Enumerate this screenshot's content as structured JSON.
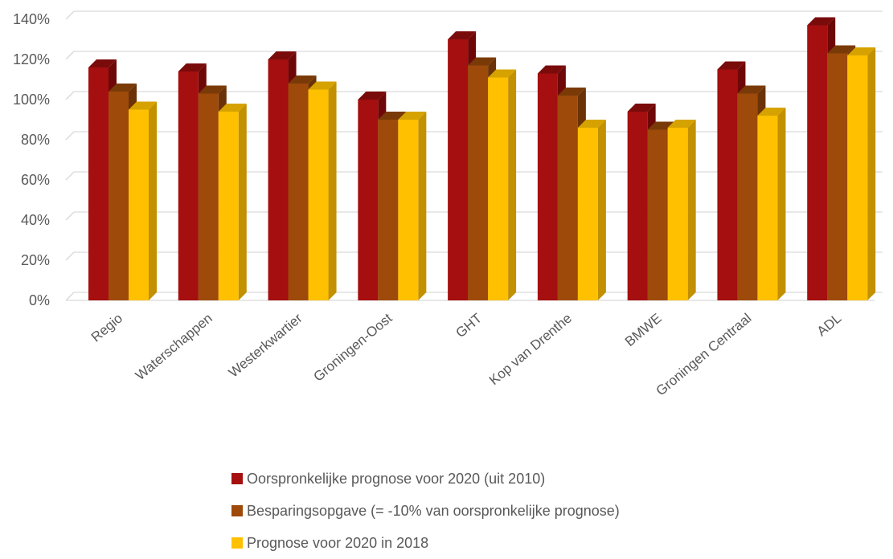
{
  "chart_data": {
    "type": "bar",
    "title": "",
    "xlabel": "",
    "ylabel": "",
    "ylim": [
      0,
      140
    ],
    "y_tick_labels": [
      "0%",
      "20%",
      "40%",
      "60%",
      "80%",
      "100%",
      "120%",
      "140%"
    ],
    "grid": true,
    "legend_position": "bottom",
    "categories": [
      "Regio",
      "Waterschappen",
      "Westerkwartier",
      "Groningen-Oost",
      "GHT",
      "Kop van Drenthe",
      "BMWE",
      "Groningen Centraal",
      "ADL"
    ],
    "series": [
      {
        "name": "Oorspronkelijke prognose voor 2020 (uit 2010)",
        "color": "#A50F0F",
        "side": "#6E0808",
        "top": "#7A0B0B",
        "values": [
          116,
          114,
          120,
          100,
          130,
          113,
          94,
          115,
          137
        ]
      },
      {
        "name": "Besparingsopgave (= -10% van oorspronkelijke prognose)",
        "color": "#9E4A0A",
        "side": "#6A3206",
        "top": "#7A3A08",
        "values": [
          104,
          103,
          108,
          90,
          117,
          102,
          85,
          103,
          123
        ]
      },
      {
        "name": "Prognose voor 2020 in 2018",
        "color": "#FFC000",
        "side": "#C29000",
        "top": "#D6A200",
        "values": [
          95,
          94,
          105,
          90,
          111,
          86,
          86,
          92,
          122
        ]
      }
    ]
  }
}
